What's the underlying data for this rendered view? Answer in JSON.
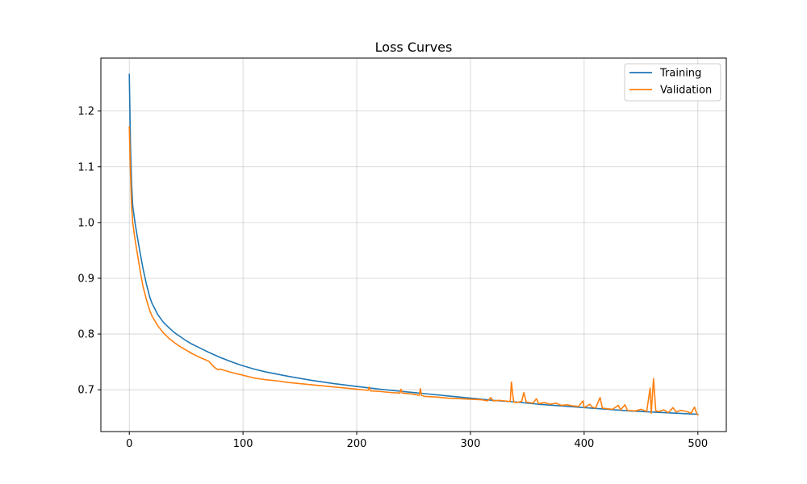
{
  "chart_data": {
    "type": "line",
    "title": "Loss Curves",
    "xlabel": "",
    "ylabel": "",
    "xlim": [
      -25,
      525
    ],
    "ylim": [
      0.625,
      1.295
    ],
    "xticks": [
      0,
      100,
      200,
      300,
      400,
      500
    ],
    "yticks": [
      0.7,
      0.8,
      0.9,
      1.0,
      1.1,
      1.2
    ],
    "xtick_labels": [
      "0",
      "100",
      "200",
      "300",
      "400",
      "500"
    ],
    "ytick_labels": [
      "0.7",
      "0.8",
      "0.9",
      "1.0",
      "1.1",
      "1.2"
    ],
    "grid": true,
    "legend_position": "top-right",
    "series": [
      {
        "name": "Training",
        "color": "#1f77b4",
        "points": [
          [
            0,
            1.266
          ],
          [
            1,
            1.14
          ],
          [
            2,
            1.07
          ],
          [
            3,
            1.03
          ],
          [
            5,
            1.0
          ],
          [
            7,
            0.975
          ],
          [
            10,
            0.94
          ],
          [
            12,
            0.918
          ],
          [
            15,
            0.89
          ],
          [
            18,
            0.866
          ],
          [
            20,
            0.855
          ],
          [
            25,
            0.835
          ],
          [
            30,
            0.821
          ],
          [
            35,
            0.811
          ],
          [
            40,
            0.802
          ],
          [
            45,
            0.795
          ],
          [
            50,
            0.788
          ],
          [
            55,
            0.782
          ],
          [
            60,
            0.777
          ],
          [
            70,
            0.767
          ],
          [
            80,
            0.758
          ],
          [
            90,
            0.75
          ],
          [
            100,
            0.743
          ],
          [
            110,
            0.737
          ],
          [
            120,
            0.732
          ],
          [
            140,
            0.724
          ],
          [
            160,
            0.717
          ],
          [
            180,
            0.711
          ],
          [
            200,
            0.706
          ],
          [
            220,
            0.701
          ],
          [
            240,
            0.697
          ],
          [
            260,
            0.693
          ],
          [
            280,
            0.689
          ],
          [
            300,
            0.685
          ],
          [
            320,
            0.681
          ],
          [
            340,
            0.678
          ],
          [
            360,
            0.674
          ],
          [
            380,
            0.671
          ],
          [
            400,
            0.668
          ],
          [
            420,
            0.665
          ],
          [
            440,
            0.662
          ],
          [
            460,
            0.66
          ],
          [
            480,
            0.658
          ],
          [
            500,
            0.656
          ]
        ]
      },
      {
        "name": "Validation",
        "color": "#ff7f0e",
        "points": [
          [
            0,
            1.172
          ],
          [
            1,
            1.09
          ],
          [
            2,
            1.03
          ],
          [
            3,
            1.0
          ],
          [
            5,
            0.97
          ],
          [
            7,
            0.945
          ],
          [
            10,
            0.908
          ],
          [
            12,
            0.886
          ],
          [
            15,
            0.862
          ],
          [
            18,
            0.842
          ],
          [
            20,
            0.832
          ],
          [
            25,
            0.815
          ],
          [
            30,
            0.802
          ],
          [
            35,
            0.792
          ],
          [
            40,
            0.784
          ],
          [
            45,
            0.777
          ],
          [
            50,
            0.771
          ],
          [
            55,
            0.765
          ],
          [
            60,
            0.76
          ],
          [
            70,
            0.751
          ],
          [
            75,
            0.74
          ],
          [
            78,
            0.736
          ],
          [
            80,
            0.737
          ],
          [
            90,
            0.731
          ],
          [
            100,
            0.726
          ],
          [
            110,
            0.721
          ],
          [
            120,
            0.718
          ],
          [
            130,
            0.716
          ],
          [
            140,
            0.713
          ],
          [
            150,
            0.711
          ],
          [
            160,
            0.709
          ],
          [
            170,
            0.707
          ],
          [
            180,
            0.705
          ],
          [
            190,
            0.703
          ],
          [
            200,
            0.701
          ],
          [
            210,
            0.699
          ],
          [
            211,
            0.705
          ],
          [
            212,
            0.698
          ],
          [
            220,
            0.697
          ],
          [
            230,
            0.695
          ],
          [
            238,
            0.694
          ],
          [
            239,
            0.701
          ],
          [
            240,
            0.694
          ],
          [
            250,
            0.692
          ],
          [
            255,
            0.69
          ],
          [
            256,
            0.702
          ],
          [
            257,
            0.69
          ],
          [
            260,
            0.688
          ],
          [
            270,
            0.687
          ],
          [
            280,
            0.685
          ],
          [
            290,
            0.684
          ],
          [
            300,
            0.683
          ],
          [
            310,
            0.682
          ],
          [
            315,
            0.68
          ],
          [
            318,
            0.686
          ],
          [
            320,
            0.68
          ],
          [
            325,
            0.681
          ],
          [
            330,
            0.68
          ],
          [
            335,
            0.679
          ],
          [
            336,
            0.714
          ],
          [
            338,
            0.678
          ],
          [
            340,
            0.677
          ],
          [
            345,
            0.679
          ],
          [
            347,
            0.695
          ],
          [
            349,
            0.678
          ],
          [
            355,
            0.676
          ],
          [
            358,
            0.684
          ],
          [
            360,
            0.675
          ],
          [
            365,
            0.677
          ],
          [
            370,
            0.674
          ],
          [
            375,
            0.676
          ],
          [
            380,
            0.672
          ],
          [
            385,
            0.673
          ],
          [
            390,
            0.671
          ],
          [
            395,
            0.67
          ],
          [
            399,
            0.68
          ],
          [
            400,
            0.668
          ],
          [
            405,
            0.674
          ],
          [
            407,
            0.669
          ],
          [
            410,
            0.667
          ],
          [
            414,
            0.686
          ],
          [
            416,
            0.667
          ],
          [
            420,
            0.666
          ],
          [
            425,
            0.665
          ],
          [
            430,
            0.672
          ],
          [
            432,
            0.664
          ],
          [
            436,
            0.673
          ],
          [
            438,
            0.663
          ],
          [
            445,
            0.662
          ],
          [
            450,
            0.665
          ],
          [
            455,
            0.661
          ],
          [
            458,
            0.703
          ],
          [
            459,
            0.658
          ],
          [
            461,
            0.72
          ],
          [
            463,
            0.662
          ],
          [
            466,
            0.661
          ],
          [
            470,
            0.664
          ],
          [
            474,
            0.659
          ],
          [
            478,
            0.668
          ],
          [
            481,
            0.66
          ],
          [
            485,
            0.663
          ],
          [
            490,
            0.661
          ],
          [
            494,
            0.658
          ],
          [
            497,
            0.669
          ],
          [
            499,
            0.657
          ],
          [
            500,
            0.655
          ]
        ]
      }
    ]
  }
}
